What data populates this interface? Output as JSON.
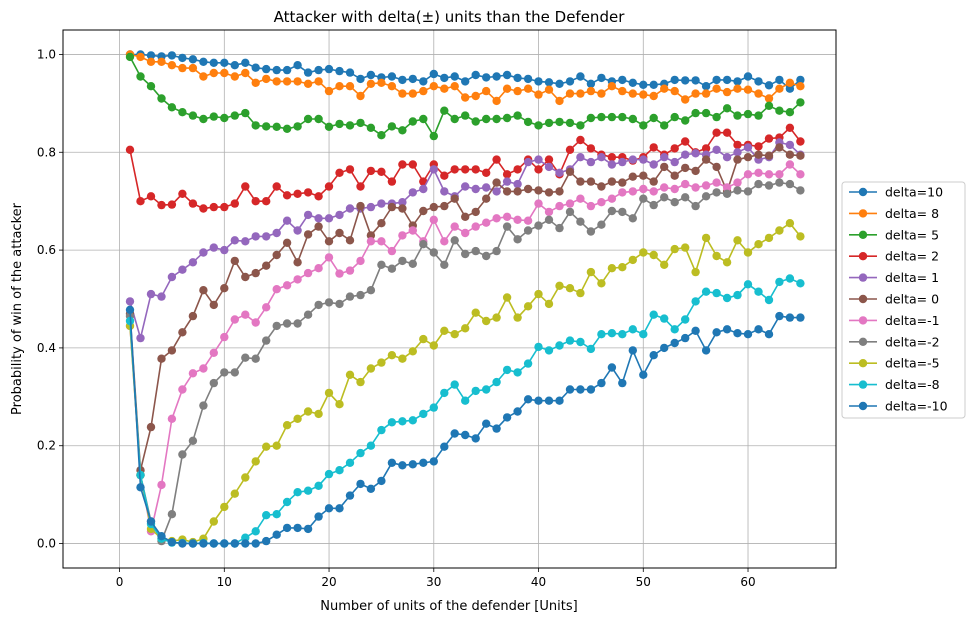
{
  "chart_data": {
    "type": "line",
    "title": "Attacker with delta(±) units than the Defender",
    "xlabel": "Number of units of the defender [Units]",
    "ylabel": "Probability of win of the attacker",
    "xlim": [
      -5.4,
      68.4
    ],
    "ylim": [
      -0.05,
      1.05
    ],
    "xticks": [
      0,
      10,
      20,
      30,
      40,
      50,
      60
    ],
    "yticks": [
      0.0,
      0.2,
      0.4,
      0.6,
      0.8,
      1.0
    ],
    "ytick_labels": [
      "0.0",
      "0.2",
      "0.4",
      "0.6",
      "0.8",
      "1.0"
    ],
    "grid": true,
    "legend_position": "center-right, outside plot",
    "x": [
      1,
      2,
      3,
      4,
      5,
      6,
      7,
      8,
      9,
      10,
      11,
      12,
      13,
      14,
      15,
      16,
      17,
      18,
      19,
      20,
      21,
      22,
      23,
      24,
      25,
      26,
      27,
      28,
      29,
      30,
      31,
      32,
      33,
      34,
      35,
      36,
      37,
      38,
      39,
      40,
      41,
      42,
      43,
      44,
      45,
      46,
      47,
      48,
      49,
      50,
      51,
      52,
      53,
      54,
      55,
      56,
      57,
      58,
      59,
      60,
      61,
      62,
      63,
      64,
      65
    ],
    "series": [
      {
        "name": "delta=10",
        "color": "#1f77b4",
        "values": [
          1.0,
          1.0,
          0.998,
          0.996,
          0.998,
          0.993,
          0.99,
          0.985,
          0.983,
          0.983,
          0.978,
          0.983,
          0.973,
          0.97,
          0.968,
          0.968,
          0.978,
          0.963,
          0.968,
          0.97,
          0.966,
          0.963,
          0.95,
          0.958,
          0.953,
          0.955,
          0.948,
          0.95,
          0.945,
          0.96,
          0.952,
          0.955,
          0.945,
          0.958,
          0.953,
          0.955,
          0.958,
          0.952,
          0.95,
          0.945,
          0.943,
          0.94,
          0.945,
          0.955,
          0.94,
          0.952,
          0.945,
          0.948,
          0.942,
          0.938,
          0.938,
          0.94,
          0.948,
          0.947,
          0.947,
          0.935,
          0.948,
          0.948,
          0.945,
          0.955,
          0.945,
          0.937,
          0.948,
          0.93,
          0.948
        ]
      },
      {
        "name": "delta= 8",
        "color": "#ff7f0e",
        "values": [
          1.0,
          0.995,
          0.985,
          0.985,
          0.978,
          0.972,
          0.972,
          0.955,
          0.962,
          0.962,
          0.955,
          0.962,
          0.942,
          0.95,
          0.945,
          0.945,
          0.945,
          0.94,
          0.945,
          0.925,
          0.935,
          0.935,
          0.915,
          0.94,
          0.942,
          0.935,
          0.92,
          0.92,
          0.925,
          0.935,
          0.93,
          0.935,
          0.912,
          0.915,
          0.925,
          0.905,
          0.93,
          0.925,
          0.93,
          0.918,
          0.928,
          0.905,
          0.92,
          0.92,
          0.925,
          0.92,
          0.935,
          0.925,
          0.92,
          0.918,
          0.915,
          0.93,
          0.925,
          0.908,
          0.92,
          0.92,
          0.93,
          0.923,
          0.93,
          0.928,
          0.92,
          0.91,
          0.93,
          0.942,
          0.935
        ]
      },
      {
        "name": "delta= 5",
        "color": "#2ca02c",
        "values": [
          0.995,
          0.955,
          0.935,
          0.91,
          0.892,
          0.882,
          0.875,
          0.868,
          0.873,
          0.87,
          0.875,
          0.88,
          0.855,
          0.853,
          0.852,
          0.848,
          0.853,
          0.868,
          0.868,
          0.852,
          0.858,
          0.855,
          0.86,
          0.85,
          0.835,
          0.853,
          0.845,
          0.863,
          0.868,
          0.833,
          0.885,
          0.868,
          0.875,
          0.863,
          0.868,
          0.868,
          0.87,
          0.875,
          0.862,
          0.855,
          0.86,
          0.862,
          0.86,
          0.855,
          0.87,
          0.872,
          0.872,
          0.872,
          0.868,
          0.855,
          0.87,
          0.855,
          0.872,
          0.865,
          0.88,
          0.88,
          0.872,
          0.89,
          0.875,
          0.878,
          0.875,
          0.895,
          0.885,
          0.882,
          0.902
        ]
      },
      {
        "name": "delta= 2",
        "color": "#d62728",
        "values": [
          0.805,
          0.7,
          0.71,
          0.692,
          0.693,
          0.715,
          0.695,
          0.685,
          0.688,
          0.688,
          0.695,
          0.73,
          0.7,
          0.7,
          0.73,
          0.712,
          0.715,
          0.718,
          0.71,
          0.73,
          0.758,
          0.765,
          0.73,
          0.762,
          0.76,
          0.74,
          0.775,
          0.775,
          0.74,
          0.775,
          0.752,
          0.765,
          0.765,
          0.765,
          0.758,
          0.785,
          0.755,
          0.765,
          0.785,
          0.765,
          0.785,
          0.755,
          0.805,
          0.825,
          0.808,
          0.795,
          0.79,
          0.79,
          0.783,
          0.79,
          0.81,
          0.795,
          0.808,
          0.822,
          0.8,
          0.808,
          0.84,
          0.84,
          0.815,
          0.815,
          0.812,
          0.828,
          0.83,
          0.85,
          0.822
        ]
      },
      {
        "name": "delta= 1",
        "color": "#9467bd",
        "values": [
          0.495,
          0.42,
          0.51,
          0.505,
          0.545,
          0.56,
          0.575,
          0.595,
          0.605,
          0.6,
          0.62,
          0.618,
          0.628,
          0.628,
          0.635,
          0.66,
          0.64,
          0.672,
          0.665,
          0.665,
          0.672,
          0.685,
          0.685,
          0.688,
          0.695,
          0.695,
          0.698,
          0.718,
          0.725,
          0.765,
          0.72,
          0.71,
          0.73,
          0.725,
          0.728,
          0.72,
          0.74,
          0.735,
          0.78,
          0.785,
          0.77,
          0.758,
          0.765,
          0.79,
          0.78,
          0.79,
          0.775,
          0.78,
          0.785,
          0.785,
          0.775,
          0.79,
          0.78,
          0.795,
          0.798,
          0.795,
          0.805,
          0.79,
          0.8,
          0.81,
          0.785,
          0.79,
          0.82,
          0.815,
          0.795
        ]
      },
      {
        "name": "delta= 0",
        "color": "#8c564b",
        "values": [
          0.47,
          0.15,
          0.238,
          0.378,
          0.395,
          0.432,
          0.465,
          0.518,
          0.488,
          0.522,
          0.578,
          0.545,
          0.553,
          0.568,
          0.59,
          0.615,
          0.575,
          0.632,
          0.648,
          0.618,
          0.635,
          0.62,
          0.69,
          0.63,
          0.655,
          0.688,
          0.685,
          0.65,
          0.68,
          0.688,
          0.69,
          0.705,
          0.668,
          0.678,
          0.705,
          0.738,
          0.72,
          0.72,
          0.725,
          0.722,
          0.718,
          0.72,
          0.76,
          0.74,
          0.74,
          0.73,
          0.74,
          0.738,
          0.75,
          0.752,
          0.74,
          0.77,
          0.752,
          0.768,
          0.762,
          0.785,
          0.77,
          0.72,
          0.785,
          0.79,
          0.795,
          0.793,
          0.81,
          0.795,
          0.793
        ]
      },
      {
        "name": "delta=-1",
        "color": "#e377c2",
        "values": [
          0.445,
          0.14,
          0.025,
          0.12,
          0.255,
          0.315,
          0.348,
          0.358,
          0.39,
          0.422,
          0.458,
          0.468,
          0.452,
          0.483,
          0.52,
          0.528,
          0.54,
          0.553,
          0.563,
          0.585,
          0.552,
          0.558,
          0.578,
          0.618,
          0.618,
          0.598,
          0.63,
          0.64,
          0.618,
          0.662,
          0.618,
          0.648,
          0.635,
          0.648,
          0.656,
          0.665,
          0.668,
          0.662,
          0.66,
          0.695,
          0.678,
          0.69,
          0.695,
          0.705,
          0.69,
          0.698,
          0.705,
          0.718,
          0.72,
          0.725,
          0.72,
          0.728,
          0.725,
          0.735,
          0.728,
          0.732,
          0.738,
          0.728,
          0.738,
          0.755,
          0.758,
          0.755,
          0.755,
          0.775,
          0.755
        ]
      },
      {
        "name": "delta=-2",
        "color": "#7f7f7f",
        "values": [
          0.465,
          0.14,
          0.045,
          0.005,
          0.06,
          0.182,
          0.21,
          0.282,
          0.328,
          0.35,
          0.35,
          0.38,
          0.378,
          0.415,
          0.445,
          0.45,
          0.45,
          0.468,
          0.488,
          0.493,
          0.49,
          0.505,
          0.508,
          0.518,
          0.57,
          0.562,
          0.578,
          0.572,
          0.612,
          0.595,
          0.57,
          0.62,
          0.592,
          0.598,
          0.588,
          0.598,
          0.648,
          0.622,
          0.64,
          0.65,
          0.662,
          0.645,
          0.678,
          0.658,
          0.638,
          0.652,
          0.68,
          0.678,
          0.665,
          0.705,
          0.692,
          0.708,
          0.698,
          0.708,
          0.69,
          0.71,
          0.718,
          0.715,
          0.722,
          0.72,
          0.735,
          0.732,
          0.738,
          0.735,
          0.722
        ]
      },
      {
        "name": "delta=-5",
        "color": "#bcbd22",
        "values": [
          0.445,
          0.14,
          0.03,
          0.01,
          0.005,
          0.008,
          0.003,
          0.01,
          0.045,
          0.075,
          0.102,
          0.135,
          0.168,
          0.198,
          0.2,
          0.242,
          0.255,
          0.27,
          0.265,
          0.308,
          0.285,
          0.345,
          0.33,
          0.358,
          0.37,
          0.385,
          0.378,
          0.393,
          0.418,
          0.405,
          0.435,
          0.428,
          0.44,
          0.472,
          0.455,
          0.462,
          0.503,
          0.462,
          0.485,
          0.51,
          0.49,
          0.527,
          0.522,
          0.512,
          0.555,
          0.532,
          0.563,
          0.565,
          0.58,
          0.595,
          0.59,
          0.57,
          0.602,
          0.605,
          0.555,
          0.625,
          0.588,
          0.575,
          0.62,
          0.595,
          0.612,
          0.625,
          0.64,
          0.655,
          0.628
        ]
      },
      {
        "name": "delta=-8",
        "color": "#17becf",
        "values": [
          0.455,
          0.14,
          0.04,
          0.01,
          0.002,
          0.001,
          0.0,
          0.001,
          0.0,
          0.0,
          0.0,
          0.012,
          0.025,
          0.058,
          0.06,
          0.085,
          0.105,
          0.108,
          0.118,
          0.142,
          0.15,
          0.165,
          0.185,
          0.2,
          0.232,
          0.248,
          0.25,
          0.252,
          0.265,
          0.278,
          0.308,
          0.325,
          0.292,
          0.312,
          0.315,
          0.33,
          0.355,
          0.35,
          0.368,
          0.402,
          0.395,
          0.405,
          0.415,
          0.412,
          0.398,
          0.428,
          0.43,
          0.428,
          0.438,
          0.428,
          0.468,
          0.46,
          0.438,
          0.458,
          0.495,
          0.515,
          0.512,
          0.502,
          0.508,
          0.53,
          0.515,
          0.498,
          0.535,
          0.542,
          0.532
        ]
      },
      {
        "name": "delta=-10",
        "color": "#1f77b4",
        "values": [
          0.478,
          0.115,
          0.045,
          0.015,
          0.003,
          0.0,
          0.0,
          0.0,
          0.0,
          0.0,
          0.0,
          0.0,
          0.0,
          0.005,
          0.018,
          0.032,
          0.032,
          0.03,
          0.055,
          0.072,
          0.072,
          0.098,
          0.122,
          0.112,
          0.128,
          0.165,
          0.16,
          0.162,
          0.165,
          0.168,
          0.198,
          0.225,
          0.222,
          0.215,
          0.245,
          0.235,
          0.258,
          0.27,
          0.295,
          0.292,
          0.292,
          0.292,
          0.315,
          0.315,
          0.315,
          0.328,
          0.36,
          0.328,
          0.395,
          0.345,
          0.385,
          0.4,
          0.41,
          0.42,
          0.435,
          0.395,
          0.432,
          0.438,
          0.43,
          0.428,
          0.438,
          0.428,
          0.465,
          0.462,
          0.462
        ]
      }
    ]
  }
}
